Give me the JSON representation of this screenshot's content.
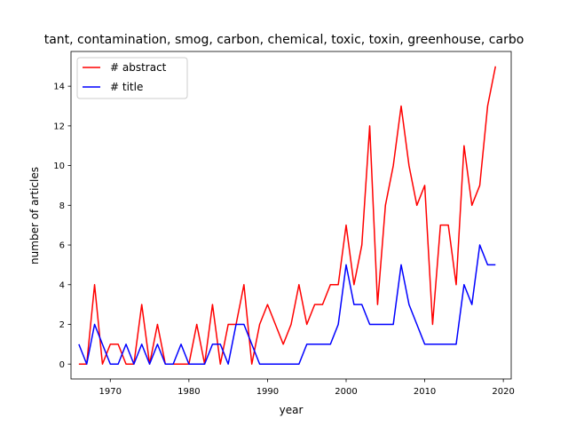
{
  "chart_data": {
    "type": "line",
    "title": "tant, contamination, smog, carbon, chemical, toxic, toxin, greenhouse, carbo",
    "xlabel": "year",
    "ylabel": "number of articles",
    "xlim": [
      1965,
      2021
    ],
    "ylim": [
      -0.75,
      15.75
    ],
    "xticks": [
      1970,
      1980,
      1990,
      2000,
      2010,
      2020
    ],
    "xtick_labels": [
      "1970",
      "1980",
      "1990",
      "2000",
      "2010",
      "2020"
    ],
    "yticks": [
      0,
      2,
      4,
      6,
      8,
      10,
      12,
      14
    ],
    "ytick_labels": [
      "0",
      "2",
      "4",
      "6",
      "8",
      "10",
      "12",
      "14"
    ],
    "grid": false,
    "legend_position": "upper-left",
    "x": [
      1966,
      1967,
      1968,
      1969,
      1970,
      1971,
      1972,
      1973,
      1974,
      1975,
      1976,
      1977,
      1978,
      1979,
      1980,
      1981,
      1982,
      1983,
      1984,
      1985,
      1986,
      1987,
      1988,
      1989,
      1990,
      1991,
      1992,
      1993,
      1994,
      1995,
      1996,
      1997,
      1998,
      1999,
      2000,
      2001,
      2002,
      2003,
      2004,
      2005,
      2006,
      2007,
      2008,
      2009,
      2010,
      2011,
      2012,
      2013,
      2014,
      2015,
      2016,
      2017,
      2018,
      2019
    ],
    "series": [
      {
        "name": "# abstract",
        "color": "#ff0000",
        "values": [
          0,
          0,
          4,
          0,
          1,
          1,
          0,
          0,
          3,
          0,
          2,
          0,
          0,
          0,
          0,
          2,
          0,
          3,
          0,
          2,
          2,
          4,
          0,
          2,
          3,
          2,
          1,
          2,
          4,
          2,
          3,
          3,
          4,
          4,
          7,
          4,
          6,
          12,
          3,
          8,
          10,
          13,
          10,
          8,
          9,
          2,
          7,
          7,
          4,
          11,
          8,
          9,
          13,
          15
        ]
      },
      {
        "name": "# title",
        "color": "#0000ff",
        "values": [
          1,
          0,
          2,
          1,
          0,
          0,
          1,
          0,
          1,
          0,
          1,
          0,
          0,
          1,
          0,
          0,
          0,
          1,
          1,
          0,
          2,
          2,
          1,
          0,
          0,
          0,
          0,
          0,
          0,
          1,
          1,
          1,
          1,
          2,
          5,
          3,
          3,
          2,
          2,
          2,
          2,
          5,
          3,
          2,
          1,
          1,
          1,
          1,
          1,
          4,
          3,
          6,
          5,
          5
        ]
      }
    ]
  }
}
